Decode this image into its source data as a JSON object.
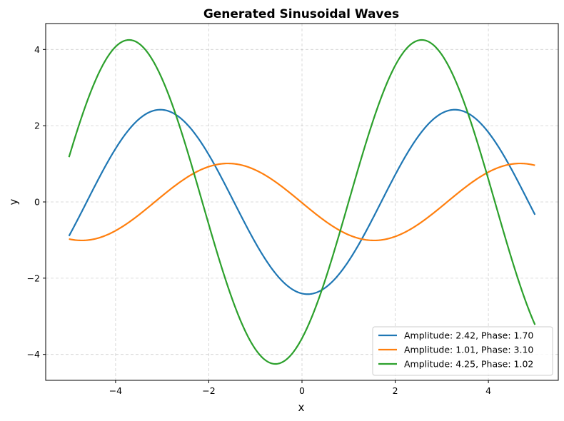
{
  "chart_data": {
    "type": "line",
    "title": "Generated Sinusoidal Waves",
    "xlabel": "x",
    "ylabel": "y",
    "xlim": [
      -5.5,
      5.5
    ],
    "ylim": [
      -4.68,
      4.68
    ],
    "xticks": [
      -4,
      -2,
      0,
      2,
      4
    ],
    "yticks": [
      -4,
      -2,
      0,
      2,
      4
    ],
    "xtick_labels": [
      "−4",
      "−2",
      "0",
      "2",
      "4"
    ],
    "ytick_labels": [
      "−4",
      "−2",
      "0",
      "2",
      "4"
    ],
    "grid": true,
    "legend_position": "lower-right",
    "series": [
      {
        "name": "Amplitude: 2.42, Phase: 1.70",
        "color": "#1f77b4",
        "amplitude": 2.42,
        "x_range": [
          -5,
          5
        ],
        "extrema": [
          [
            -3.04,
            2.42
          ],
          [
            0.12,
            -2.42
          ],
          [
            3.28,
            2.42
          ]
        ],
        "endpoints": [
          [
            -5,
            -0.95
          ],
          [
            5,
            -0.38
          ]
        ]
      },
      {
        "name": "Amplitude: 1.01, Phase: 3.10",
        "color": "#ff7f0e",
        "amplitude": 1.01,
        "x_range": [
          -5,
          5
        ],
        "extrema": [
          [
            -4.72,
            -1.01
          ],
          [
            -1.59,
            1.01
          ],
          [
            1.55,
            -1.01
          ],
          [
            4.69,
            1.01
          ]
        ],
        "endpoints": [
          [
            -5,
            -0.97
          ],
          [
            5,
            0.96
          ]
        ]
      },
      {
        "name": "Amplitude: 4.25, Phase: 1.02",
        "color": "#2ca02c",
        "amplitude": 4.25,
        "x_range": [
          -5,
          5
        ],
        "extrema": [
          [
            -3.71,
            4.25
          ],
          [
            -0.57,
            -4.25
          ],
          [
            2.57,
            4.25
          ]
        ],
        "endpoints": [
          [
            -5,
            1.12
          ],
          [
            5,
            -3.18
          ]
        ]
      }
    ]
  }
}
